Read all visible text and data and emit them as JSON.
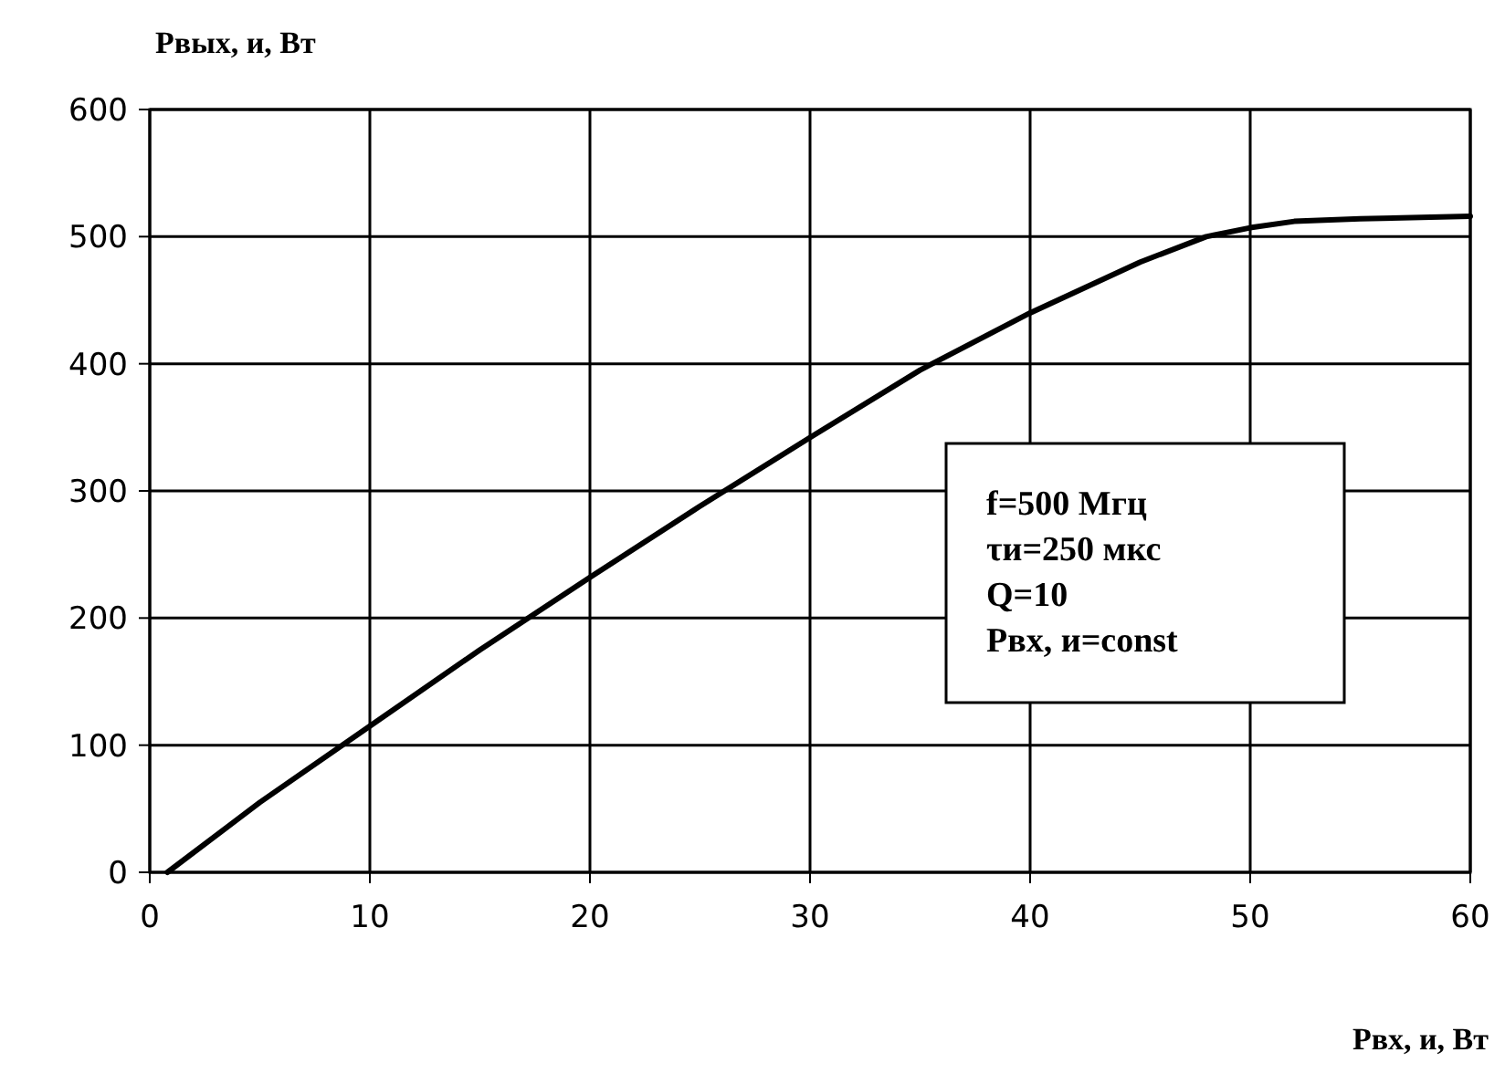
{
  "chart_data": {
    "type": "line",
    "xlabel": "Рвх, и, Вт",
    "ylabel": "Рвых, и, Вт",
    "xlim": [
      0,
      60
    ],
    "xticks": [
      0,
      10,
      20,
      30,
      40,
      50,
      60
    ],
    "ylim": [
      0,
      600
    ],
    "yticks": [
      0,
      100,
      200,
      300,
      400,
      500,
      600
    ],
    "grid": true,
    "marker": "none",
    "line_style": "solid",
    "series": [
      {
        "color": "#000000",
        "x": [
          0.8,
          5,
          10,
          15,
          20,
          25,
          30,
          35,
          40,
          45,
          48,
          50,
          52,
          55,
          60
        ],
        "values": [
          0,
          55,
          115,
          175,
          232,
          288,
          342,
          395,
          440,
          480,
          500,
          507,
          512,
          514,
          516
        ]
      }
    ],
    "annotations": [
      "f=500 Мгц",
      "τи=250 мкс",
      "Q=10",
      "Рвх, и=const"
    ]
  }
}
